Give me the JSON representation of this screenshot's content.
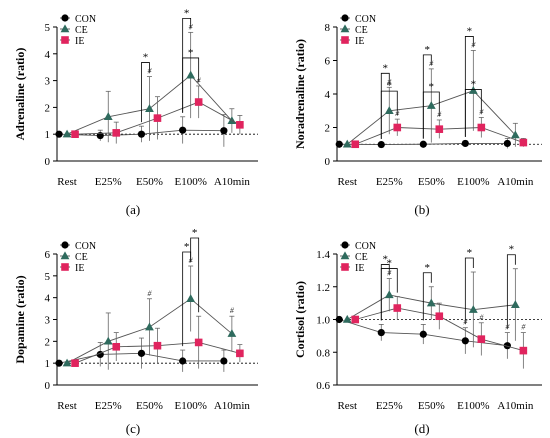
{
  "colors": {
    "CON": "#000000",
    "CE": "#2f6b5e",
    "IE": "#e0245e",
    "axis": "#000000",
    "error": "#666666",
    "baseline": "#000000"
  },
  "chart_data": [
    {
      "type": "line",
      "panel_label": "(a)",
      "ylabel": "Adrenaline (ratio)",
      "categories": [
        "Rest",
        "E25%",
        "E50%",
        "E100%",
        "A10min"
      ],
      "ylim": [
        0,
        5
      ],
      "yticks": [
        "0",
        "1",
        "2",
        "3",
        "4",
        "5"
      ],
      "legend": "top-left",
      "grid": false,
      "baseline": 1,
      "series": [
        {
          "name": "CON",
          "marker": "circle",
          "values": [
            1.0,
            0.95,
            1.0,
            1.15,
            1.13
          ],
          "err": [
            0.0,
            0.2,
            0.3,
            0.5,
            0.6
          ]
        },
        {
          "name": "CE",
          "marker": "triangle",
          "values": [
            1.0,
            1.65,
            1.95,
            3.2,
            1.5
          ],
          "err": [
            0.0,
            0.95,
            1.2,
            1.6,
            0.45
          ]
        },
        {
          "name": "IE",
          "marker": "square",
          "values": [
            1.0,
            1.05,
            1.6,
            2.2,
            1.35
          ],
          "err": [
            0.0,
            0.4,
            0.8,
            0.6,
            0.35
          ]
        }
      ],
      "annotations": [
        {
          "label": "*",
          "bracket": [
            "CON",
            "CE"
          ],
          "category": "E50%"
        },
        {
          "label": "*",
          "bracket": [
            "CON",
            "CE"
          ],
          "category": "E100%"
        },
        {
          "label": "*",
          "bracket": [
            "CON",
            "IE"
          ],
          "category": "E100%"
        },
        {
          "label": "#",
          "series": "CE",
          "category": "E50%"
        },
        {
          "label": "#",
          "series": "CE",
          "category": "E100%"
        },
        {
          "label": "#",
          "series": "IE",
          "category": "E100%"
        }
      ]
    },
    {
      "type": "line",
      "panel_label": "(b)",
      "ylabel": "Noradrenaline (ratio)",
      "categories": [
        "Rest",
        "E25%",
        "E50%",
        "E100%",
        "A10min"
      ],
      "ylim": [
        0,
        8
      ],
      "yticks": [
        "0",
        "2",
        "4",
        "6",
        "8"
      ],
      "legend": "top-left",
      "grid": false,
      "baseline": 1,
      "series": [
        {
          "name": "CON",
          "marker": "circle",
          "values": [
            1.0,
            0.98,
            1.0,
            1.05,
            1.05
          ],
          "err": [
            0.0,
            0.1,
            0.1,
            0.15,
            0.3
          ]
        },
        {
          "name": "CE",
          "marker": "triangle",
          "values": [
            1.0,
            3.0,
            3.3,
            4.2,
            1.55
          ],
          "err": [
            0.0,
            1.4,
            2.2,
            2.4,
            0.7
          ]
        },
        {
          "name": "IE",
          "marker": "square",
          "values": [
            1.0,
            2.0,
            1.9,
            2.0,
            1.1
          ],
          "err": [
            0.0,
            0.5,
            0.55,
            0.6,
            0.25
          ]
        }
      ],
      "annotations": [
        {
          "label": "*",
          "bracket": [
            "CON",
            "CE"
          ],
          "category": "E25%"
        },
        {
          "label": "*",
          "bracket": [
            "CON",
            "IE"
          ],
          "category": "E25%"
        },
        {
          "label": "*",
          "bracket": [
            "CON",
            "CE"
          ],
          "category": "E50%"
        },
        {
          "label": "*",
          "bracket": [
            "CON",
            "IE"
          ],
          "category": "E50%"
        },
        {
          "label": "*",
          "bracket": [
            "CON",
            "CE"
          ],
          "category": "E100%"
        },
        {
          "label": "*",
          "bracket": [
            "CON",
            "IE"
          ],
          "category": "E100%"
        },
        {
          "label": "#",
          "series": "CE",
          "category": "E25%"
        },
        {
          "label": "#",
          "series": "IE",
          "category": "E25%"
        },
        {
          "label": "#",
          "series": "CE",
          "category": "E50%"
        },
        {
          "label": "#",
          "series": "IE",
          "category": "E50%"
        },
        {
          "label": "#",
          "series": "CE",
          "category": "E100%"
        },
        {
          "label": "#",
          "series": "IE",
          "category": "E100%"
        }
      ]
    },
    {
      "type": "line",
      "panel_label": "(c)",
      "ylabel": "Dopamine (ratio)",
      "categories": [
        "Rest",
        "E25%",
        "E50%",
        "E100%",
        "A10min"
      ],
      "ylim": [
        0,
        6
      ],
      "yticks": [
        "0",
        "1",
        "2",
        "3",
        "4",
        "5",
        "6"
      ],
      "legend": "top-left",
      "grid": false,
      "baseline": 1,
      "series": [
        {
          "name": "CON",
          "marker": "circle",
          "values": [
            1.0,
            1.4,
            1.45,
            1.1,
            1.1
          ],
          "err": [
            0.0,
            0.55,
            0.7,
            0.5,
            0.5
          ]
        },
        {
          "name": "CE",
          "marker": "triangle",
          "values": [
            1.0,
            2.0,
            2.65,
            3.95,
            2.35
          ],
          "err": [
            0.0,
            1.3,
            1.3,
            1.5,
            0.8
          ]
        },
        {
          "name": "IE",
          "marker": "square",
          "values": [
            1.0,
            1.75,
            1.8,
            1.95,
            1.45
          ],
          "err": [
            0.0,
            0.65,
            0.8,
            1.2,
            0.4
          ]
        }
      ],
      "annotations": [
        {
          "label": "*",
          "bracket": [
            "CON",
            "CE"
          ],
          "category": "E100%"
        },
        {
          "label": "*",
          "bracket": [
            "CE",
            "IE"
          ],
          "category": "E100%"
        },
        {
          "label": "#",
          "series": "CE",
          "category": "E50%"
        },
        {
          "label": "#",
          "series": "CE",
          "category": "E100%"
        },
        {
          "label": "#",
          "series": "CE",
          "category": "A10min"
        }
      ]
    },
    {
      "type": "line",
      "panel_label": "(d)",
      "ylabel": "Cortisol (ratio)",
      "categories": [
        "Rest",
        "E25%",
        "E50%",
        "E100%",
        "A10min"
      ],
      "ylim": [
        0.6,
        1.4
      ],
      "yticks": [
        "0.6",
        "0.8",
        "1.0",
        "1.2",
        "1.4"
      ],
      "legend": "top-left",
      "grid": false,
      "baseline": 1.0,
      "series": [
        {
          "name": "CON",
          "marker": "circle",
          "values": [
            1.0,
            0.92,
            0.91,
            0.87,
            0.84
          ],
          "err": [
            0.0,
            0.05,
            0.06,
            0.08,
            0.08
          ]
        },
        {
          "name": "CE",
          "marker": "triangle",
          "values": [
            1.0,
            1.15,
            1.1,
            1.06,
            1.09
          ],
          "err": [
            0.0,
            0.1,
            0.1,
            0.23,
            0.22
          ]
        },
        {
          "name": "IE",
          "marker": "square",
          "values": [
            1.0,
            1.07,
            1.02,
            0.88,
            0.81
          ],
          "err": [
            0.0,
            0.07,
            0.08,
            0.1,
            0.11
          ]
        }
      ],
      "annotations": [
        {
          "label": "*",
          "bracket": [
            "CON",
            "CE"
          ],
          "category": "E25%"
        },
        {
          "label": "*",
          "bracket": [
            "CON",
            "IE"
          ],
          "category": "E25%"
        },
        {
          "label": "*",
          "bracket": [
            "CON",
            "CE"
          ],
          "category": "E50%"
        },
        {
          "label": "*",
          "bracket": [
            "CON",
            "CE"
          ],
          "category": "E100%"
        },
        {
          "label": "*",
          "bracket": [
            "CON",
            "CE"
          ],
          "category": "A10min"
        },
        {
          "label": "#",
          "series": "CE",
          "category": "E25%"
        },
        {
          "label": "#",
          "series": "IE",
          "category": "E100%"
        },
        {
          "label": "#",
          "series": "IE",
          "category": "A10min"
        },
        {
          "label": "#",
          "series": "CON",
          "category": "E100%"
        },
        {
          "label": "#",
          "series": "CON",
          "category": "A10min"
        }
      ]
    }
  ]
}
